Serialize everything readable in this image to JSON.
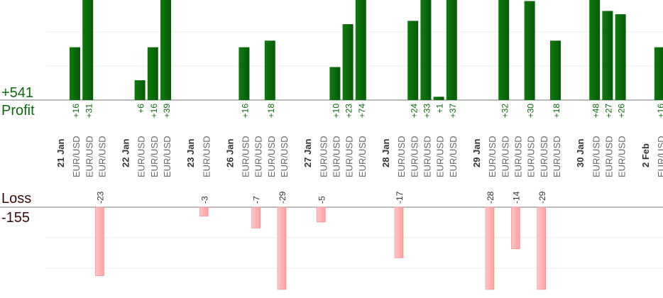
{
  "summary": {
    "profit_total": "+541",
    "profit_label": "Profit",
    "loss_label": "Loss",
    "loss_total": "-155"
  },
  "colors": {
    "profit": "#0b6b0b",
    "loss": "#ffb3b3",
    "loss_edge": "#e88a8a",
    "axis": "#777777",
    "grid": "#eeeeee"
  },
  "chart_data": {
    "type": "bar",
    "profit_series": [
      {
        "date": "21 Jan",
        "trades": [
          {
            "label": "EUR/USD",
            "value": 16
          },
          {
            "label": "EUR/USD",
            "value": 31
          },
          {
            "label": "EUR/USD",
            "value": -23
          }
        ]
      },
      {
        "date": "22 Jan",
        "trades": [
          {
            "label": "EUR/USD",
            "value": 6
          },
          {
            "label": "EUR/USD",
            "value": 16
          },
          {
            "label": "EUR/USD",
            "value": 39
          }
        ]
      },
      {
        "date": "23 Jan",
        "trades": [
          {
            "label": "EUR/USD",
            "value": -3
          }
        ]
      },
      {
        "date": "26 Jan",
        "trades": [
          {
            "label": "EUR/USD",
            "value": 16
          },
          {
            "label": "EUR/USD",
            "value": -7
          },
          {
            "label": "EUR/USD",
            "value": 18
          },
          {
            "label": "EUR/USD",
            "value": -29
          }
        ]
      },
      {
        "date": "27 Jan",
        "trades": [
          {
            "label": "EUR/USD",
            "value": -5
          },
          {
            "label": "EUR/USD",
            "value": 10
          },
          {
            "label": "EUR/USD",
            "value": 23
          },
          {
            "label": "EUR/USD",
            "value": 74
          }
        ]
      },
      {
        "date": "28 Jan",
        "trades": [
          {
            "label": "EUR/USD",
            "value": -17
          },
          {
            "label": "EUR/USD",
            "value": 24
          },
          {
            "label": "EUR/USD",
            "value": 33
          },
          {
            "label": "EUR/USD",
            "value": 1
          },
          {
            "label": "EUR/USD",
            "value": 37
          }
        ]
      },
      {
        "date": "29 Jan",
        "trades": [
          {
            "label": "EUR/USD",
            "value": -28
          },
          {
            "label": "EUR/USD",
            "value": 32
          },
          {
            "label": "EUR/USD",
            "value": -14
          },
          {
            "label": "EUR/USD",
            "value": 30
          },
          {
            "label": "EUR/USD",
            "value": -29
          },
          {
            "label": "EUR/USD",
            "value": 18
          }
        ]
      },
      {
        "date": "30 Jan",
        "trades": [
          {
            "label": "EUR/USD",
            "value": 48
          },
          {
            "label": "EUR/USD",
            "value": 27
          },
          {
            "label": "EUR/USD",
            "value": 26
          }
        ]
      },
      {
        "date": "2 Feb",
        "trades": [
          {
            "label": "EUR/USD",
            "value": 16
          }
        ]
      }
    ],
    "profit_ylim": [
      0,
      30
    ],
    "loss_ylim": [
      -25,
      0
    ],
    "grid": true
  }
}
